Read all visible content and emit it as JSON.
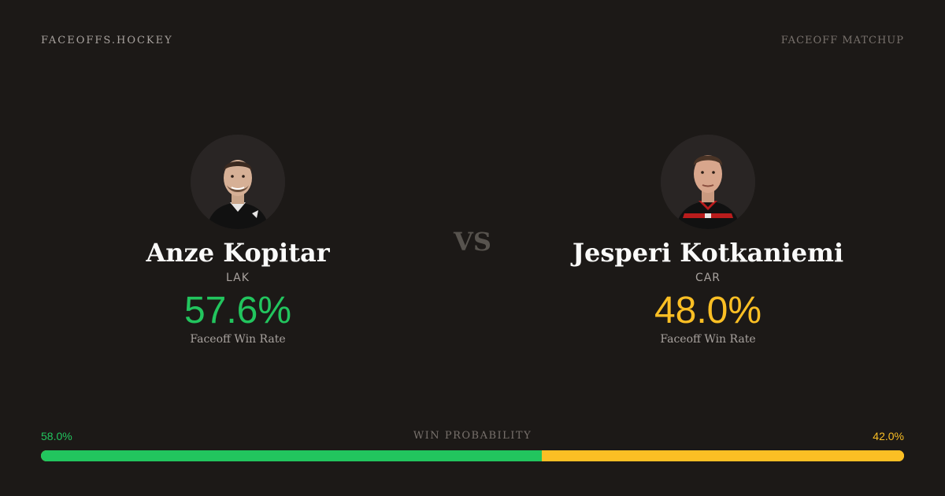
{
  "header": {
    "brand": "FACEOFFS.HOCKEY",
    "section_label": "FACEOFF MATCHUP"
  },
  "players": [
    {
      "name": "Anze Kopitar",
      "team": "LAK",
      "win_rate": "57.6%",
      "win_rate_label": "Faceoff Win Rate",
      "accent_color": "#22c55e",
      "jersey": "black"
    },
    {
      "name": "Jesperi Kotkaniemi",
      "team": "CAR",
      "win_rate": "48.0%",
      "win_rate_label": "Faceoff Win Rate",
      "accent_color": "#fbbf24",
      "jersey": "black-red"
    }
  ],
  "vs_label": "VS",
  "win_probability": {
    "title": "WIN PROBABILITY",
    "left_label": "58.0%",
    "right_label": "42.0%",
    "left_fraction": 0.58,
    "right_fraction": 0.42
  },
  "colors": {
    "background": "#1c1917",
    "left_accent": "#22c55e",
    "right_accent": "#fbbf24"
  }
}
